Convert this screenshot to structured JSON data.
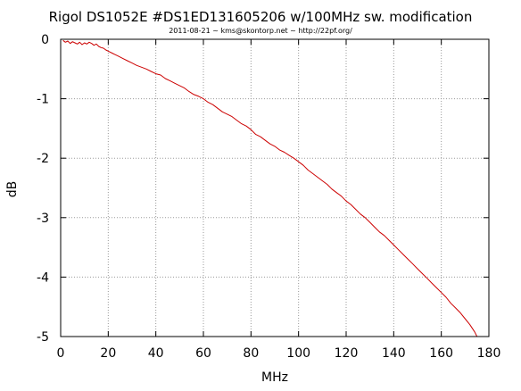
{
  "chart_data": {
    "type": "line",
    "title": "Rigol DS1052E #DS1ED131605206 w/100MHz sw. modification",
    "subtitle": "2011-08-21 ~ kms@skontorp.net ~ http://22pf.org/",
    "xlabel": "MHz",
    "ylabel": "dB",
    "xlim": [
      0,
      180
    ],
    "ylim": [
      -5,
      0
    ],
    "x_ticks": [
      "0",
      "20",
      "40",
      "60",
      "80",
      "100",
      "120",
      "140",
      "160",
      "180"
    ],
    "y_ticks": [
      "0",
      "-1",
      "-2",
      "-3",
      "-4",
      "-5"
    ],
    "grid": true,
    "grid_style": "dotted",
    "series": [
      {
        "color": "#cc0000",
        "x": [
          1,
          2,
          3,
          4,
          5,
          6,
          7,
          8,
          9,
          10,
          11,
          12,
          13,
          14,
          15,
          16,
          17,
          18,
          19,
          20,
          22,
          24,
          26,
          28,
          30,
          32,
          34,
          36,
          38,
          40,
          42,
          44,
          46,
          48,
          50,
          52,
          54,
          56,
          58,
          60,
          62,
          64,
          66,
          68,
          70,
          72,
          74,
          76,
          78,
          80,
          82,
          84,
          86,
          88,
          90,
          92,
          94,
          96,
          98,
          100,
          102,
          104,
          106,
          108,
          110,
          112,
          114,
          116,
          118,
          120,
          122,
          124,
          126,
          128,
          130,
          132,
          134,
          136,
          138,
          140,
          142,
          144,
          146,
          148,
          150,
          152,
          154,
          156,
          158,
          160,
          162,
          164,
          166,
          168,
          170,
          172,
          174,
          175
        ],
        "y": [
          -0.02,
          -0.05,
          -0.03,
          -0.07,
          -0.04,
          -0.06,
          -0.08,
          -0.05,
          -0.09,
          -0.06,
          -0.08,
          -0.05,
          -0.07,
          -0.1,
          -0.08,
          -0.12,
          -0.14,
          -0.15,
          -0.18,
          -0.2,
          -0.24,
          -0.28,
          -0.32,
          -0.36,
          -0.4,
          -0.44,
          -0.47,
          -0.5,
          -0.54,
          -0.58,
          -0.6,
          -0.66,
          -0.7,
          -0.74,
          -0.78,
          -0.82,
          -0.88,
          -0.93,
          -0.96,
          -1.0,
          -1.06,
          -1.1,
          -1.16,
          -1.22,
          -1.26,
          -1.3,
          -1.36,
          -1.42,
          -1.46,
          -1.52,
          -1.6,
          -1.64,
          -1.7,
          -1.76,
          -1.8,
          -1.86,
          -1.9,
          -1.95,
          -2.0,
          -2.06,
          -2.12,
          -2.2,
          -2.26,
          -2.32,
          -2.38,
          -2.44,
          -2.52,
          -2.58,
          -2.64,
          -2.72,
          -2.78,
          -2.86,
          -2.94,
          -3.0,
          -3.08,
          -3.16,
          -3.24,
          -3.3,
          -3.38,
          -3.46,
          -3.54,
          -3.62,
          -3.7,
          -3.78,
          -3.86,
          -3.94,
          -4.02,
          -4.1,
          -4.18,
          -4.26,
          -4.34,
          -4.44,
          -4.52,
          -4.6,
          -4.7,
          -4.8,
          -4.92,
          -5.0
        ]
      }
    ]
  }
}
